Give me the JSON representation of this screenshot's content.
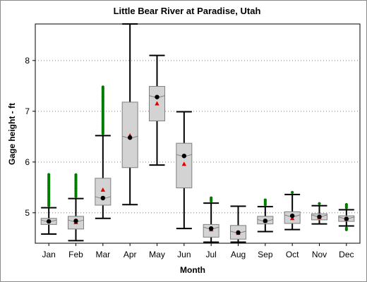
{
  "chart_data": {
    "type": "box",
    "title": "Little Bear River at Paradise, Utah",
    "xlabel": "Month",
    "ylabel": "Gage height - ft",
    "ylim": [
      4.4,
      8.72
    ],
    "yticks": [
      5,
      6,
      7,
      8
    ],
    "grid": "horizontal dotted",
    "categories": [
      "Jan",
      "Feb",
      "Mar",
      "Apr",
      "May",
      "Jun",
      "Jul",
      "Aug",
      "Sep",
      "Oct",
      "Nov",
      "Dec"
    ],
    "boxes": [
      {
        "min": 4.58,
        "q1": 4.77,
        "median": 4.83,
        "q3": 4.89,
        "max": 5.1,
        "mean": 4.84,
        "median_marker": 4.83,
        "outliers_high": [
          5.78
        ],
        "outliers_low": [
          4.54
        ]
      },
      {
        "min": 4.45,
        "q1": 4.68,
        "median": 4.83,
        "q3": 4.93,
        "max": 5.28,
        "mean": 4.81,
        "median_marker": 4.84,
        "outliers_high": [
          5.75
        ],
        "outliers_low": []
      },
      {
        "min": 4.89,
        "q1": 5.15,
        "median": 5.29,
        "q3": 5.68,
        "max": 6.52,
        "mean": 5.45,
        "median_marker": 5.29,
        "outliers_high": [
          7.5
        ],
        "outliers_low": []
      },
      {
        "min": 5.16,
        "q1": 5.89,
        "median": 6.48,
        "q3": 7.18,
        "max": 8.72,
        "mean": 6.52,
        "median_marker": 6.48,
        "outliers_high": [],
        "outliers_low": []
      },
      {
        "min": 5.94,
        "q1": 6.81,
        "median": 7.28,
        "q3": 7.49,
        "max": 8.1,
        "mean": 7.15,
        "median_marker": 7.28,
        "outliers_high": [],
        "outliers_low": []
      },
      {
        "min": 4.69,
        "q1": 5.49,
        "median": 6.12,
        "q3": 6.37,
        "max": 6.99,
        "mean": 5.96,
        "median_marker": 6.12,
        "outliers_high": [],
        "outliers_low": []
      },
      {
        "min": 4.42,
        "q1": 4.52,
        "median": 4.69,
        "q3": 4.77,
        "max": 5.19,
        "mean": 4.67,
        "median_marker": 4.69,
        "outliers_high": [
          5.3
        ],
        "outliers_low": []
      },
      {
        "min": 4.42,
        "q1": 4.48,
        "median": 4.61,
        "q3": 4.75,
        "max": 5.13,
        "mean": 4.6,
        "median_marker": 4.61,
        "outliers_high": [],
        "outliers_low": []
      },
      {
        "min": 4.63,
        "q1": 4.78,
        "median": 4.84,
        "q3": 4.93,
        "max": 5.12,
        "mean": 4.84,
        "median_marker": 4.84,
        "outliers_high": [
          5.26
        ],
        "outliers_low": []
      },
      {
        "min": 4.67,
        "q1": 4.79,
        "median": 4.93,
        "q3": 5.02,
        "max": 5.36,
        "mean": 4.89,
        "median_marker": 4.94,
        "outliers_high": [
          5.42
        ],
        "outliers_low": []
      },
      {
        "min": 4.78,
        "q1": 4.86,
        "median": 4.93,
        "q3": 4.98,
        "max": 5.14,
        "mean": 4.91,
        "median_marker": 4.92,
        "outliers_high": [
          5.21
        ],
        "outliers_low": []
      },
      {
        "min": 4.74,
        "q1": 4.83,
        "median": 4.89,
        "q3": 4.94,
        "max": 5.06,
        "mean": 4.88,
        "median_marker": 4.88,
        "outliers_high": [
          5.17
        ],
        "outliers_low": [
          4.65
        ]
      }
    ],
    "colors": {
      "box_fill": "#d3d3d3",
      "box_edge": "#7f7f7f",
      "whisker": "#000000",
      "outlier": "#007a00",
      "mean_marker": "#e00000",
      "median_marker": "#000000",
      "grid": "#808080"
    }
  }
}
